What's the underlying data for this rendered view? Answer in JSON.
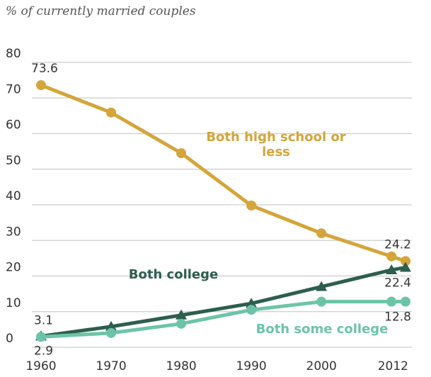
{
  "chart_data": {
    "type": "line",
    "subtitle": "% of currently married couples",
    "x": [
      1960,
      1970,
      1980,
      1990,
      2000,
      2010,
      2012
    ],
    "series": [
      {
        "name": "Both high school or less",
        "color": "#d4a53a",
        "marker": "circle",
        "values": [
          73.6,
          65.9,
          54.5,
          39.8,
          32,
          25.5,
          24.2
        ]
      },
      {
        "name": "Both college",
        "color": "#2d5e4e",
        "marker": "triangle",
        "values": [
          3.1,
          5.8,
          9,
          12.3,
          17,
          21.7,
          22.4
        ]
      },
      {
        "name": "Both some college",
        "color": "#6cc4a8",
        "marker": "circle",
        "values": [
          2.9,
          4,
          6.6,
          10.5,
          12.8,
          12.8,
          12.8
        ]
      }
    ],
    "xlim": [
      1960,
      2012
    ],
    "xticks": [
      1960,
      1970,
      1980,
      1990,
      2000,
      2012
    ],
    "ylim": [
      0,
      80
    ],
    "yticks": [
      0,
      10,
      20,
      30,
      40,
      50,
      60,
      70,
      80
    ],
    "grid": true
  }
}
